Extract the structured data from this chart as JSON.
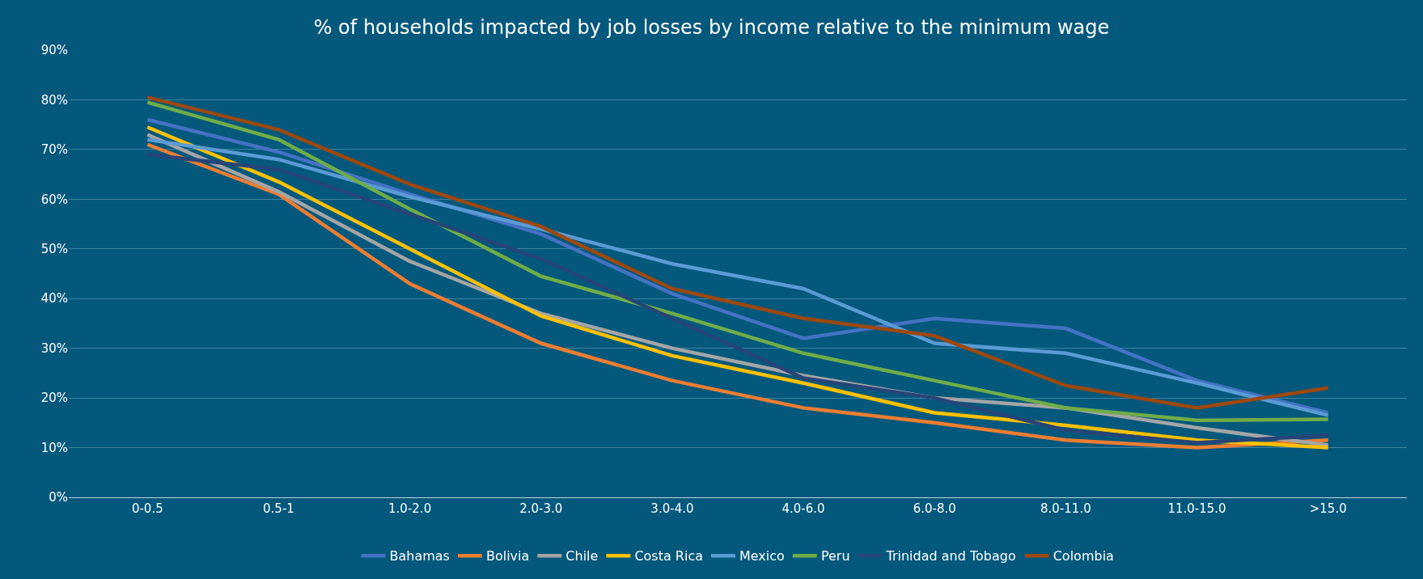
{
  "chart_data": {
    "type": "line",
    "title": "% of households impacted by job losses by income relative to the minimum wage",
    "categories": [
      "0-0.5",
      "0.5-1",
      "1.0-2.0",
      "2.0-3.0",
      "3.0-4.0",
      "4.0-6.0",
      "6.0-8.0",
      "8.0-11.0",
      "11.0-15.0",
      ">15.0"
    ],
    "series": [
      {
        "name": "Bahamas",
        "color": "#4472c4",
        "values": [
          76,
          69.5,
          61,
          53,
          41,
          32,
          36,
          34,
          23.5,
          17
        ]
      },
      {
        "name": "Bolivia",
        "color": "#ed7d31",
        "values": [
          71,
          61,
          43,
          31,
          23.5,
          18,
          15,
          11.5,
          10,
          11.5
        ]
      },
      {
        "name": "Chile",
        "color": "#a5a5a5",
        "values": [
          73,
          61.5,
          47.5,
          37,
          30,
          24.5,
          20,
          18,
          14,
          10.5
        ]
      },
      {
        "name": "Costa Rica",
        "color": "#ffc000",
        "values": [
          74.5,
          63.5,
          50,
          36.5,
          28.5,
          23,
          17,
          14.5,
          11.5,
          10
        ]
      },
      {
        "name": "Mexico",
        "color": "#5b9bd5",
        "values": [
          72,
          68,
          60.5,
          54,
          47,
          42,
          31,
          29,
          23,
          16.5
        ]
      },
      {
        "name": "Peru",
        "color": "#70ad47",
        "values": [
          79.5,
          72,
          58,
          44.5,
          37,
          29,
          23.5,
          18,
          15.5,
          15.7
        ]
      },
      {
        "name": "Trinidad and Tobago",
        "color": "#264478",
        "values": [
          69,
          66,
          57,
          48,
          36,
          24,
          20,
          13.5,
          11,
          12.5
        ]
      },
      {
        "name": "Colombia",
        "color": "#9e480e",
        "values": [
          80.5,
          74,
          63,
          54.5,
          42,
          36,
          32.5,
          22.5,
          18,
          22
        ]
      }
    ],
    "ylim": [
      0,
      90
    ],
    "yticks": [
      {
        "value": 0,
        "label": "0%"
      },
      {
        "value": 10,
        "label": "10%"
      },
      {
        "value": 20,
        "label": "20%"
      },
      {
        "value": 30,
        "label": "30%"
      },
      {
        "value": 40,
        "label": "40%"
      },
      {
        "value": 50,
        "label": "50%"
      },
      {
        "value": 60,
        "label": "60%"
      },
      {
        "value": 70,
        "label": "70%"
      },
      {
        "value": 80,
        "label": "80%"
      },
      {
        "value": 90,
        "label": "90%"
      }
    ],
    "grid": "y",
    "legend": "bottom",
    "marker": "none",
    "line_style": "solid"
  }
}
